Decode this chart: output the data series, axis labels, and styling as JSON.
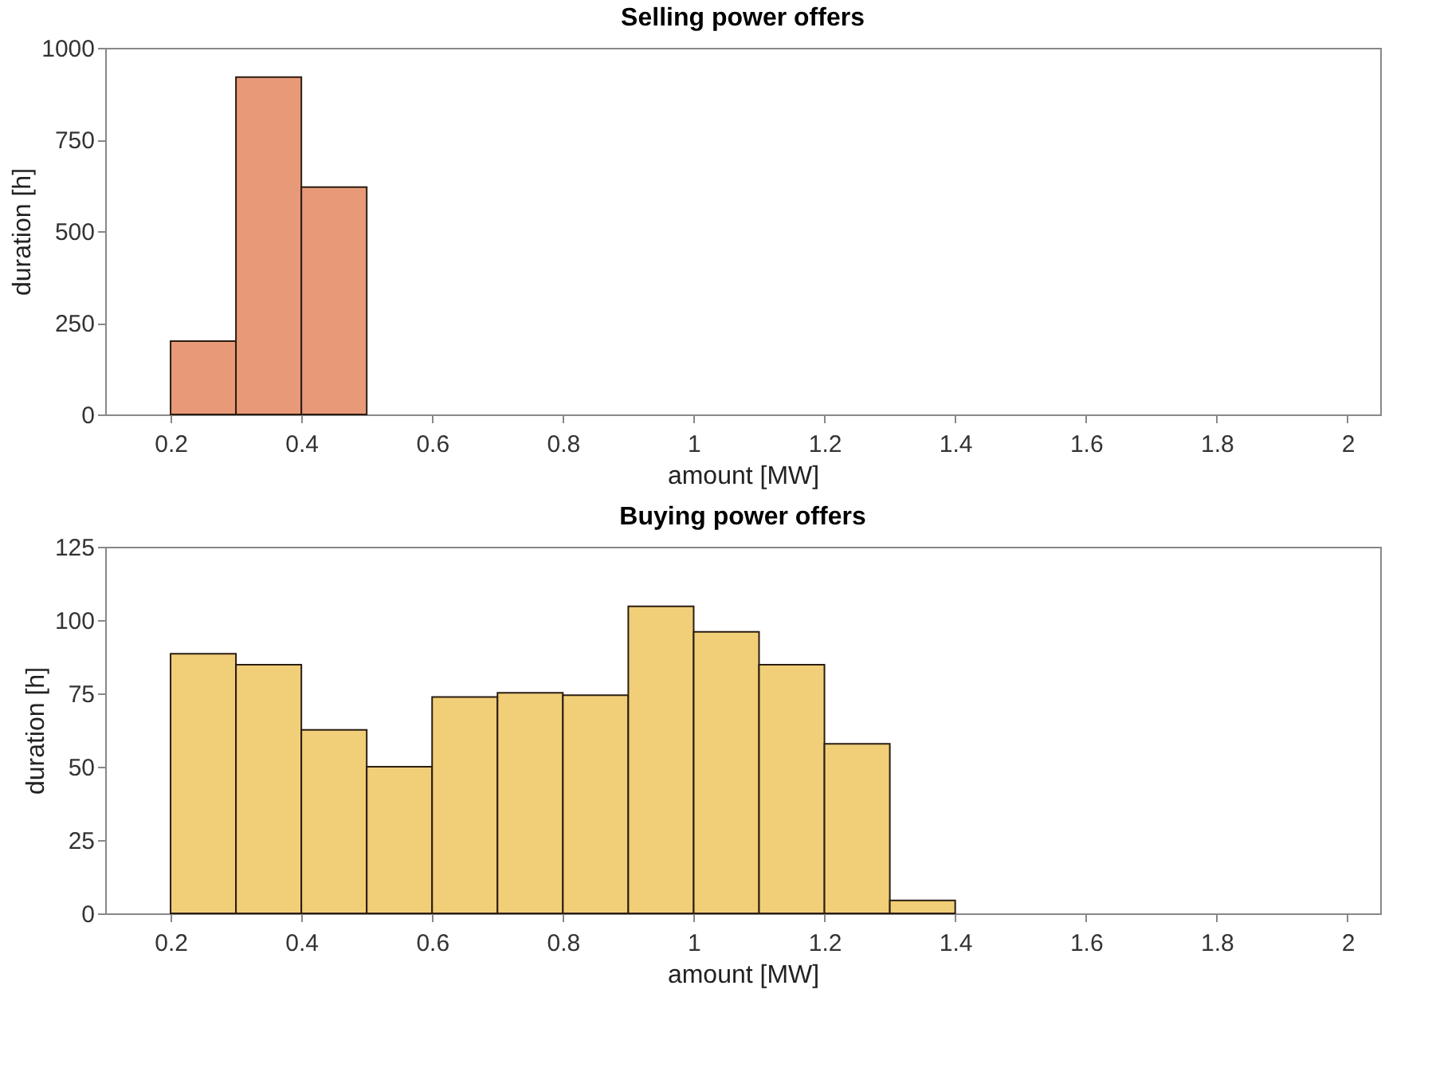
{
  "chart_data": [
    {
      "type": "histogram",
      "title": "Selling power offers",
      "xlabel": "amount [MW]",
      "ylabel": "duration [h]",
      "bins": [
        0.2,
        0.3,
        0.4,
        0.5
      ],
      "values": [
        200,
        920,
        620
      ],
      "color": "#e89a78",
      "xlim": [
        0.1,
        2.05
      ],
      "xticks": [
        0.2,
        0.4,
        0.6,
        0.8,
        1,
        1.2,
        1.4,
        1.6,
        1.8,
        2
      ],
      "ylim": [
        0,
        1000
      ],
      "yticks": [
        0,
        250,
        500,
        750,
        1000
      ],
      "grid": false
    },
    {
      "type": "histogram",
      "title": "Buying power offers",
      "xlabel": "amount [MW]",
      "ylabel": "duration [h]",
      "bins": [
        0.2,
        0.3,
        0.4,
        0.5,
        0.6,
        0.7,
        0.8,
        0.9,
        1.0,
        1.1,
        1.2,
        1.3,
        1.4
      ],
      "values": [
        88.5,
        84.8,
        62.6,
        50,
        73.8,
        75.2,
        74.4,
        104.7,
        96,
        84.8,
        57.8,
        4.4
      ],
      "color": "#f0cf78",
      "xlim": [
        0.1,
        2.05
      ],
      "xticks": [
        0.2,
        0.4,
        0.6,
        0.8,
        1,
        1.2,
        1.4,
        1.6,
        1.8,
        2
      ],
      "ylim": [
        0,
        125
      ],
      "yticks": [
        0,
        25,
        50,
        75,
        100,
        125
      ],
      "grid": false
    }
  ]
}
